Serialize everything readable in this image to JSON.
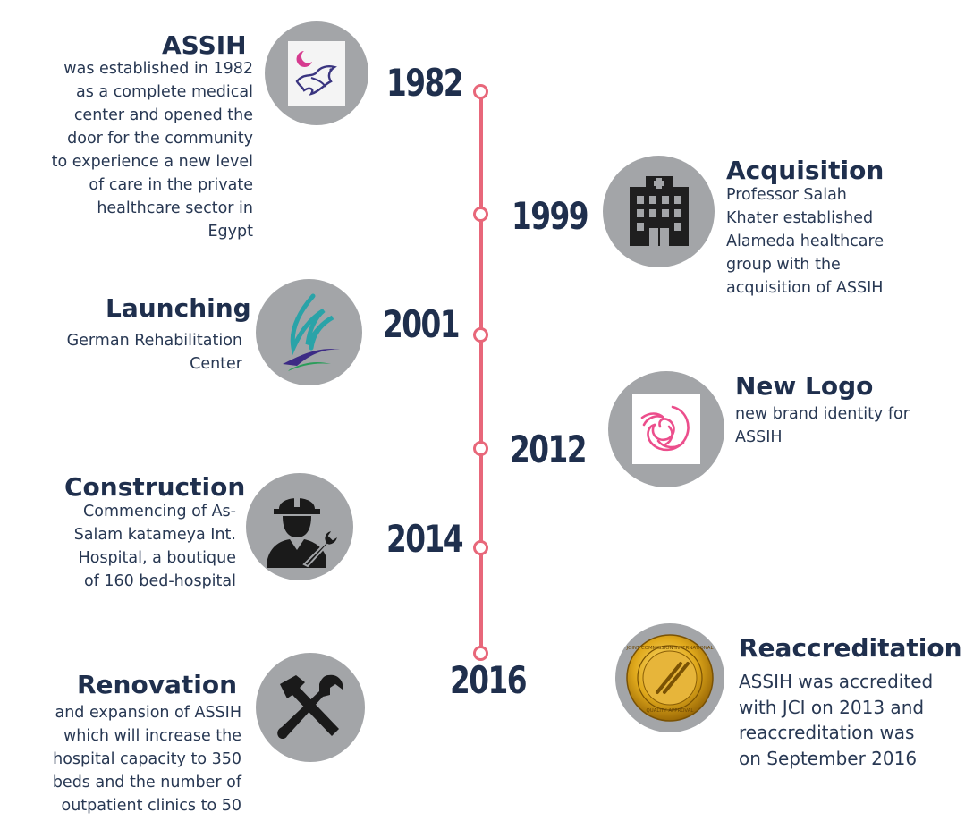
{
  "colors": {
    "axis": "#e8677a",
    "text": "#1f2f4d",
    "circle": "#a3a5a8"
  },
  "events": {
    "e1982": {
      "year": "1982",
      "title": "ASSIH",
      "lines": [
        "was established in 1982",
        "as a complete medical",
        "center and opened the",
        "door for the community",
        "to experience a new level",
        "of care in the private",
        "healthcare sector in",
        "Egypt"
      ],
      "icon": "assih-old-logo-icon"
    },
    "e1999": {
      "year": "1999",
      "title": "Acquisition",
      "lines": [
        "Professor Salah",
        "Khater established",
        "Alameda healthcare",
        "group with the",
        "acquisition of ASSIH"
      ],
      "icon": "hospital-building-icon"
    },
    "e2001": {
      "year": "2001",
      "title": "Launching",
      "lines": [
        "German Rehabilitation",
        "Center"
      ],
      "icon": "rehab-center-logo-icon"
    },
    "e2012": {
      "year": "2012",
      "title": "New Logo",
      "lines": [
        "new brand identity for",
        "ASSIH"
      ],
      "icon": "assih-new-logo-icon"
    },
    "e2014": {
      "year": "2014",
      "title": "Construction",
      "lines": [
        "Commencing of As-",
        "Salam katameya Int.",
        "Hospital, a boutique",
        "of 160 bed-hospital"
      ],
      "icon": "construction-worker-icon"
    },
    "e2016a": {
      "year": "2016",
      "title": "Renovation",
      "lines": [
        "and expansion of ASSIH",
        "which will increase the",
        "hospital capacity to 350",
        "beds and the number of",
        "outpatient clinics to 50"
      ],
      "icon": "hammer-wrench-icon"
    },
    "e2016b": {
      "title": "Reaccreditation",
      "lines": [
        "ASSIH was accredited",
        "with JCI on 2013 and",
        "reaccreditation was",
        "on September 2016"
      ],
      "icon": "jci-gold-seal-icon",
      "seal_text": [
        "JOINT COMMISSION INTERNATIONAL",
        "QUALITY APPROVAL"
      ]
    }
  }
}
